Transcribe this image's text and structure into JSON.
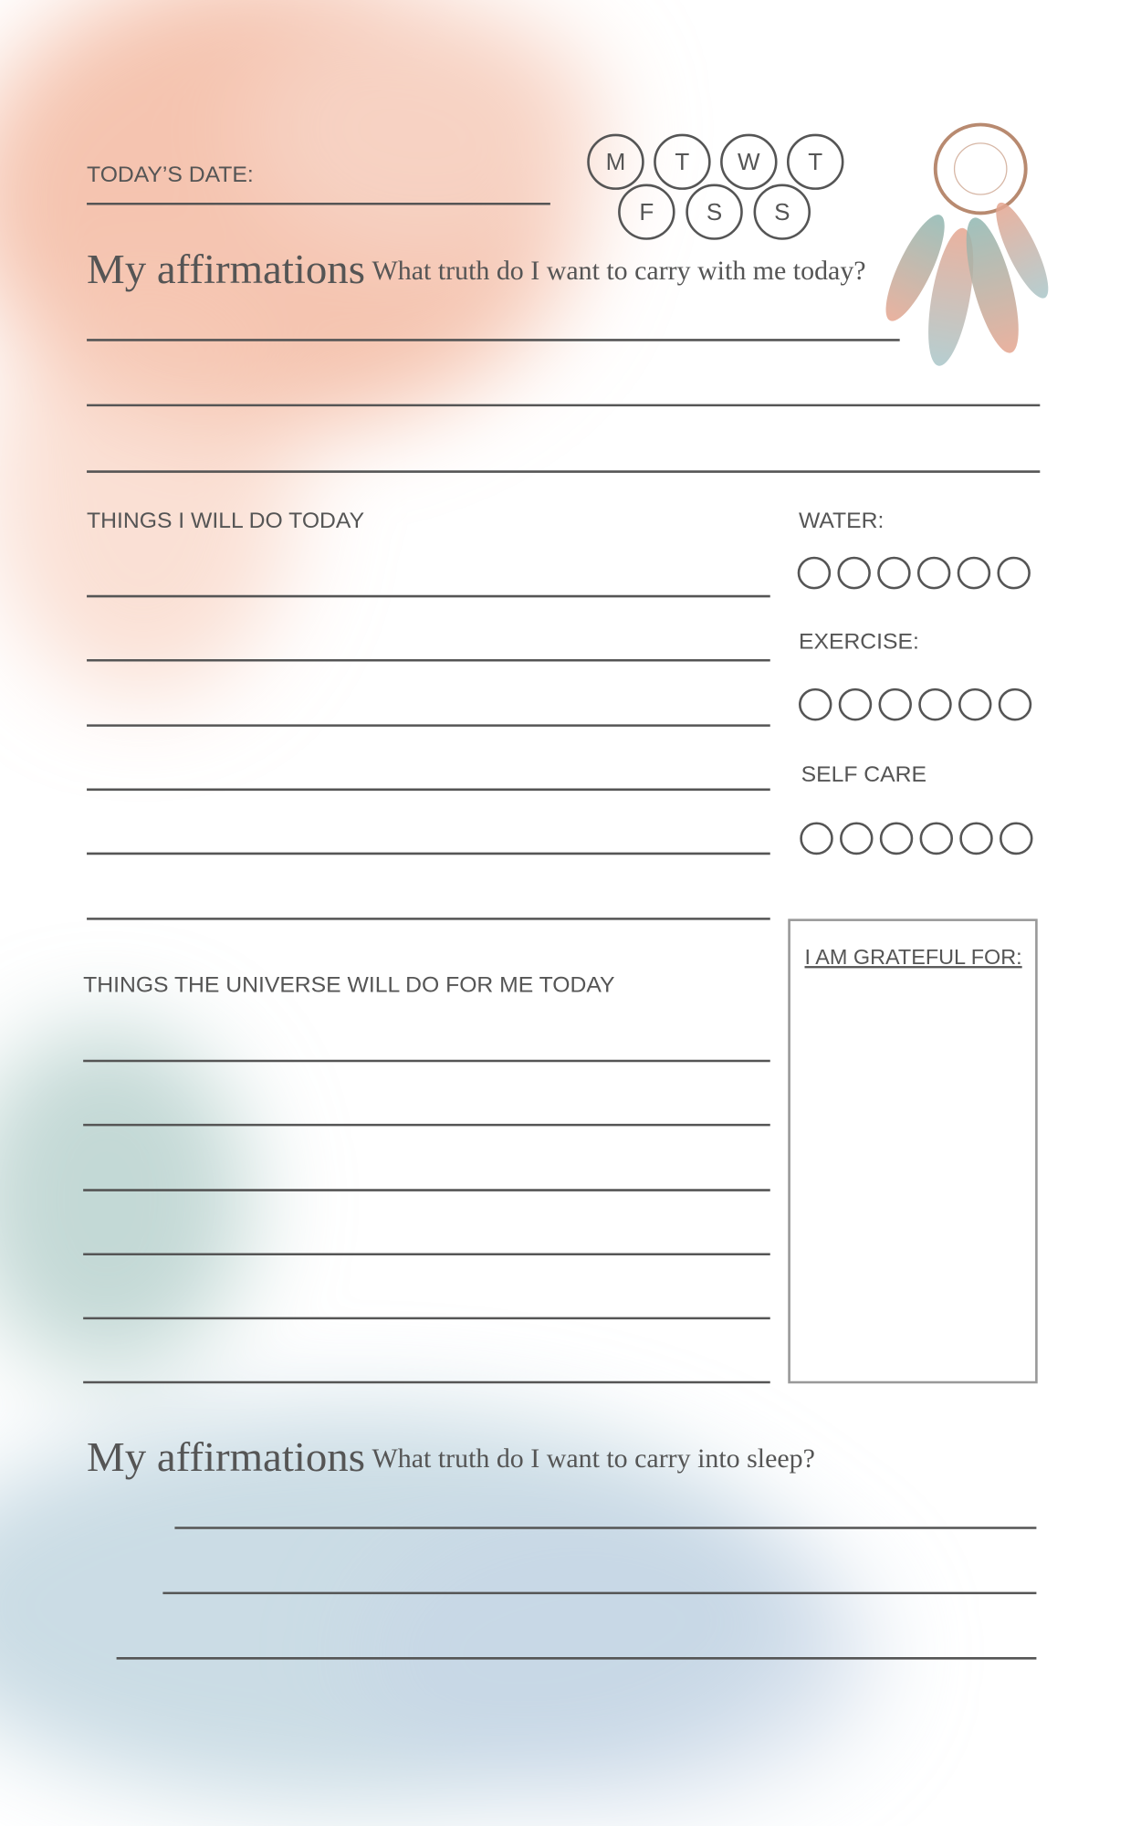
{
  "header": {
    "date_label": "TODAY’S DATE:",
    "days": [
      "M",
      "T",
      "W",
      "T",
      "F",
      "S",
      "S"
    ]
  },
  "morning": {
    "title": "My affirmations",
    "prompt": "What truth do I want to carry with me today?"
  },
  "todo": {
    "title": "THINGS I WILL DO TODAY"
  },
  "trackers": [
    {
      "label": "WATER:"
    },
    {
      "label": "EXERCISE:"
    },
    {
      "label": "SELF CARE"
    }
  ],
  "universe": {
    "title": "THINGS THE UNIVERSE WILL DO FOR ME TODAY"
  },
  "grateful": {
    "title": "I AM GRATEFUL FOR:"
  },
  "evening": {
    "title": "My affirmations",
    "prompt": "What truth do I want to carry into sleep?"
  }
}
